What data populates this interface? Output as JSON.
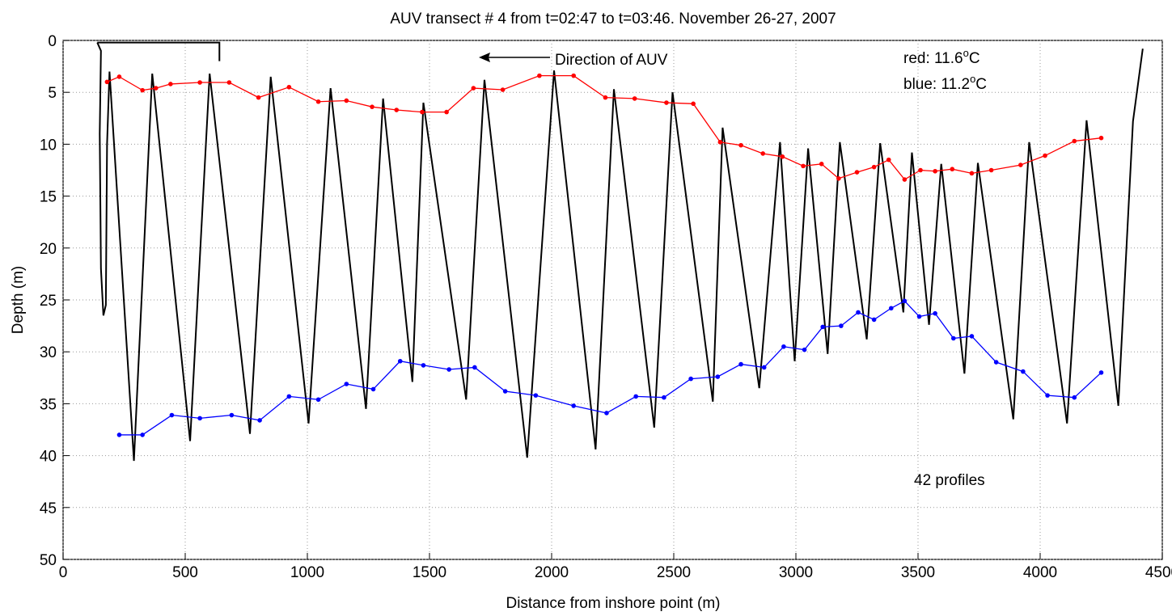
{
  "chart_data": {
    "type": "line",
    "title": "AUV transect # 4 from t=02:47 to t=03:46. November 26-27, 2007",
    "xlabel": "Distance from inshore point (m)",
    "ylabel": "Depth (m)",
    "xlim": [
      0,
      4500
    ],
    "xticks": [
      0,
      500,
      1000,
      1500,
      2000,
      2500,
      3000,
      3500,
      4000,
      4500
    ],
    "ylim": [
      0,
      50
    ],
    "yticks": [
      0,
      5,
      10,
      15,
      20,
      25,
      30,
      35,
      40,
      45,
      50
    ],
    "y_reversed": true,
    "grid": true,
    "annotations": {
      "direction": "Direction of AUV",
      "profiles": "42 profiles",
      "red": {
        "text": "red:  11.6",
        "sup": "o",
        "suffix": "C"
      },
      "blue": {
        "text": "blue: 11.2",
        "sup": "o",
        "suffix": "C"
      }
    },
    "series": [
      {
        "color": "#000000",
        "markers": false,
        "x": [
          640,
          640,
          140,
          null,
          140,
          155,
          150,
          155,
          165,
          175,
          180,
          190,
          290,
          365,
          520,
          600,
          765,
          850,
          1005,
          1095,
          1240,
          1310,
          1430,
          1475,
          1650,
          1725,
          1900,
          2010,
          2180,
          2255,
          2420,
          2495,
          2660,
          2700,
          2850,
          2935,
          2995,
          3050,
          3130,
          3180,
          3290,
          3345,
          3440,
          3475,
          3545,
          3595,
          3690,
          3745,
          3890,
          3955,
          4110,
          4190,
          4320,
          4380,
          4420
        ],
        "values": [
          2.0,
          0.2,
          0.2,
          null,
          0.2,
          1.0,
          9,
          22,
          26.5,
          25.5,
          10,
          3,
          40.5,
          3.2,
          38.6,
          3.2,
          37.9,
          3.5,
          36.9,
          4.6,
          35.5,
          5.6,
          32.9,
          6.0,
          34.6,
          3.8,
          40.2,
          2.9,
          39.4,
          4.7,
          37.3,
          5.0,
          34.8,
          8.4,
          33.5,
          9.8,
          30.9,
          10.4,
          30.2,
          9.8,
          28.8,
          9.9,
          26.2,
          10.8,
          27.4,
          11.9,
          32.1,
          11.8,
          36.5,
          9.8,
          36.9,
          7.7,
          35.2,
          7.8,
          0.8
        ]
      },
      {
        "color": "#ff0000",
        "markers": true,
        "x": [
          180,
          230,
          325,
          380,
          440,
          560,
          680,
          800,
          925,
          1045,
          1160,
          1265,
          1365,
          1470,
          1570,
          1680,
          1800,
          1950,
          2090,
          2220,
          2340,
          2470,
          2580,
          2690,
          2775,
          2865,
          2945,
          3030,
          3105,
          3175,
          3250,
          3320,
          3380,
          3445,
          3510,
          3570,
          3640,
          3720,
          3800,
          3920,
          4020,
          4140,
          4250
        ],
        "values": [
          4.0,
          3.5,
          4.8,
          4.6,
          4.2,
          4.05,
          4.05,
          5.5,
          4.5,
          5.9,
          5.8,
          6.4,
          6.7,
          6.9,
          6.9,
          4.6,
          4.75,
          3.4,
          3.4,
          5.5,
          5.6,
          6.0,
          6.1,
          9.8,
          10.1,
          10.9,
          11.2,
          12.1,
          11.9,
          13.3,
          12.7,
          12.2,
          11.5,
          13.4,
          12.5,
          12.6,
          12.4,
          12.8,
          12.5,
          12.0,
          11.1,
          9.7,
          9.4
        ]
      },
      {
        "color": "#0000ff",
        "markers": true,
        "x": [
          230,
          325,
          445,
          560,
          690,
          805,
          925,
          1045,
          1160,
          1270,
          1380,
          1475,
          1580,
          1685,
          1810,
          1935,
          2090,
          2225,
          2345,
          2460,
          2570,
          2680,
          2775,
          2870,
          2950,
          3035,
          3110,
          3185,
          3255,
          3320,
          3390,
          3445,
          3505,
          3570,
          3645,
          3720,
          3820,
          3930,
          4030,
          4140,
          4250
        ],
        "values": [
          38.0,
          38.0,
          36.1,
          36.4,
          36.1,
          36.6,
          34.3,
          34.6,
          33.1,
          33.6,
          30.9,
          31.3,
          31.7,
          31.5,
          33.8,
          34.2,
          35.2,
          35.9,
          34.3,
          34.4,
          32.6,
          32.4,
          31.2,
          31.5,
          29.5,
          29.8,
          27.6,
          27.5,
          26.2,
          26.9,
          25.8,
          25.1,
          26.6,
          26.3,
          28.7,
          28.5,
          31.0,
          31.9,
          34.2,
          34.4,
          32.0
        ]
      }
    ]
  }
}
